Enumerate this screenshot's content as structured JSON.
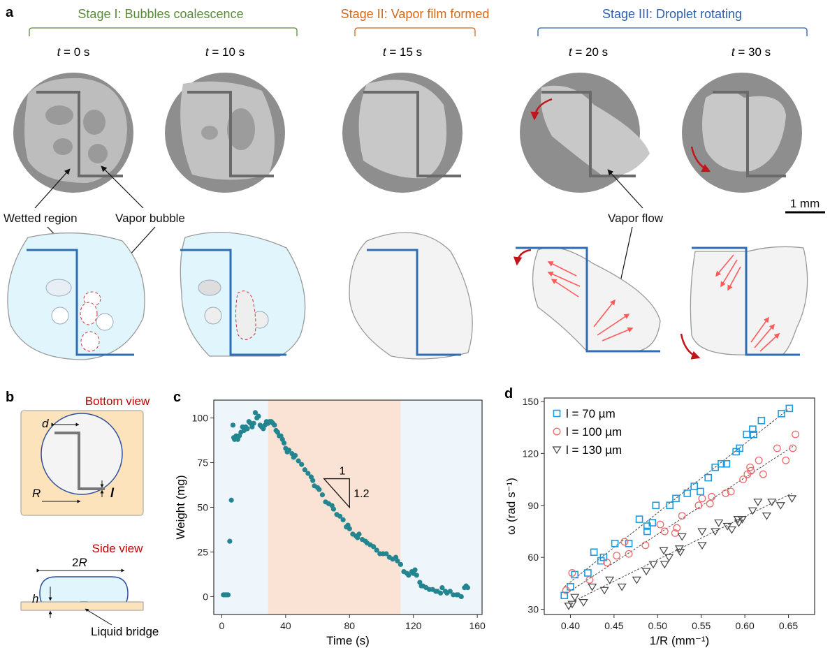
{
  "panel_labels": {
    "a": "a",
    "b": "b",
    "c": "c",
    "d": "d"
  },
  "panel_a": {
    "stages": [
      {
        "label": "Stage I: Bubbles coalescence",
        "color": "#5b8a3c"
      },
      {
        "label": "Stage II: Vapor film formed",
        "color": "#d2691e"
      },
      {
        "label": "Stage III: Droplet rotating",
        "color": "#2e5fa8"
      }
    ],
    "times": [
      {
        "var": "t",
        "rest": " = 0 s"
      },
      {
        "var": "t",
        "rest": " = 10 s"
      },
      {
        "var": "t",
        "rest": " = 15 s"
      },
      {
        "var": "t",
        "rest": " = 20 s"
      },
      {
        "var": "t",
        "rest": " = 30 s"
      }
    ],
    "annotations": {
      "wetted": "Wetted region",
      "bubble": "Vapor bubble",
      "flow": "Vapor flow",
      "scale": "1 mm"
    },
    "colors": {
      "liquid": "#e0f6fc",
      "electrode": "#2e6db4",
      "arrow": "#c0161b",
      "flow": "#ff5a5a"
    }
  },
  "panel_b": {
    "bottom_view": "Bottom view",
    "side_view": "Side view",
    "d": "d",
    "R": "R",
    "l": "l",
    "twoR": "2",
    "twoR_var": "R",
    "h": "h",
    "bridge": "Liquid bridge",
    "colors": {
      "title": "#c00000",
      "substrate": "#fde3bb"
    }
  },
  "chart_data": [
    {
      "type": "scatter",
      "xlabel": "Time (s)",
      "ylabel": "Weight (mg)",
      "xlim": [
        -5,
        163
      ],
      "ylim": [
        -10,
        110
      ],
      "xticks": [
        0,
        40,
        80,
        120,
        160
      ],
      "yticks": [
        0,
        25,
        50,
        75,
        100
      ],
      "color": "#23858f",
      "shaded_regions": [
        {
          "from": -5,
          "to": 29,
          "color": "#eef5fb"
        },
        {
          "from": 29,
          "to": 112,
          "color": "#fae3d4"
        },
        {
          "from": 112,
          "to": 163,
          "color": "#eef5fb"
        }
      ],
      "slope_triangle": {
        "run": "1",
        "rise": "1.2"
      },
      "points": [
        [
          1,
          1
        ],
        [
          2,
          1
        ],
        [
          3,
          1
        ],
        [
          4,
          1
        ],
        [
          5,
          31
        ],
        [
          6,
          54
        ],
        [
          7,
          96
        ],
        [
          7.5,
          89
        ],
        [
          8,
          88
        ],
        [
          9,
          90
        ],
        [
          10,
          88
        ],
        [
          11,
          90
        ],
        [
          12,
          92
        ],
        [
          13,
          95
        ],
        [
          14,
          93
        ],
        [
          15,
          95
        ],
        [
          16,
          94
        ],
        [
          17,
          98
        ],
        [
          18,
          97
        ],
        [
          19,
          95
        ],
        [
          20,
          97
        ],
        [
          21,
          103
        ],
        [
          22,
          100
        ],
        [
          23,
          101
        ],
        [
          24,
          96
        ],
        [
          25,
          95
        ],
        [
          26,
          94
        ],
        [
          27,
          96
        ],
        [
          28,
          98
        ],
        [
          29,
          97
        ],
        [
          30,
          98
        ],
        [
          31,
          98
        ],
        [
          32,
          97
        ],
        [
          33,
          96
        ],
        [
          34,
          93
        ],
        [
          35,
          92
        ],
        [
          36,
          90
        ],
        [
          37,
          90
        ],
        [
          38,
          88
        ],
        [
          39,
          86
        ],
        [
          40,
          83
        ],
        [
          41,
          81
        ],
        [
          42,
          82
        ],
        [
          44,
          80
        ],
        [
          45,
          78
        ],
        [
          46,
          79
        ],
        [
          48,
          76
        ],
        [
          50,
          74
        ],
        [
          52,
          71
        ],
        [
          54,
          69
        ],
        [
          56,
          67
        ],
        [
          57,
          65
        ],
        [
          58,
          62
        ],
        [
          60,
          61
        ],
        [
          61,
          60
        ],
        [
          63,
          57
        ],
        [
          65,
          53
        ],
        [
          67,
          52
        ],
        [
          69,
          51
        ],
        [
          70,
          49
        ],
        [
          72,
          46
        ],
        [
          74,
          45
        ],
        [
          76,
          43
        ],
        [
          78,
          39
        ],
        [
          79,
          40
        ],
        [
          80,
          38
        ],
        [
          82,
          35
        ],
        [
          84,
          34
        ],
        [
          85,
          33
        ],
        [
          86,
          35
        ],
        [
          88,
          32
        ],
        [
          90,
          31
        ],
        [
          91,
          30
        ],
        [
          93,
          29
        ],
        [
          95,
          28
        ],
        [
          97,
          26
        ],
        [
          99,
          24
        ],
        [
          101,
          24
        ],
        [
          103,
          24
        ],
        [
          105,
          22
        ],
        [
          107,
          21
        ],
        [
          109,
          22
        ],
        [
          110,
          20
        ],
        [
          112,
          18
        ],
        [
          114,
          14
        ],
        [
          116,
          13
        ],
        [
          117,
          12
        ],
        [
          119,
          14
        ],
        [
          120,
          13
        ],
        [
          121,
          15
        ],
        [
          122,
          12
        ],
        [
          124,
          8
        ],
        [
          125,
          6
        ],
        [
          126,
          6
        ],
        [
          128,
          5
        ],
        [
          130,
          4
        ],
        [
          132,
          4
        ],
        [
          134,
          3
        ],
        [
          135,
          3
        ],
        [
          137,
          2
        ],
        [
          138,
          5
        ],
        [
          140,
          3
        ],
        [
          141,
          2
        ],
        [
          143,
          3
        ],
        [
          145,
          1
        ],
        [
          147,
          1
        ],
        [
          148,
          1
        ],
        [
          150,
          0
        ],
        [
          152,
          5
        ],
        [
          153,
          6
        ],
        [
          154,
          5
        ]
      ]
    },
    {
      "type": "scatter",
      "xlabel": "1/R (mm⁻¹)",
      "ylabel": "ω (rad s⁻¹)",
      "xlim": [
        0.37,
        0.68
      ],
      "ylim": [
        27,
        152
      ],
      "xticks": [
        0.4,
        0.45,
        0.5,
        0.55,
        0.6,
        0.65
      ],
      "yticks": [
        30,
        60,
        90,
        120,
        150
      ],
      "legend": "top-left",
      "series": [
        {
          "name": "l = 70 µm",
          "marker": "square",
          "color": "#1a9be0",
          "fit": [
            [
              0.393,
              43
            ],
            [
              0.651,
              146
            ]
          ],
          "points": [
            [
              0.393,
              38
            ],
            [
              0.4,
              43
            ],
            [
              0.405,
              50
            ],
            [
              0.42,
              51
            ],
            [
              0.427,
              63
            ],
            [
              0.435,
              58
            ],
            [
              0.438,
              60
            ],
            [
              0.451,
              68
            ],
            [
              0.467,
              68
            ],
            [
              0.479,
              82
            ],
            [
              0.488,
              78
            ],
            [
              0.488,
              75
            ],
            [
              0.494,
              80
            ],
            [
              0.498,
              90
            ],
            [
              0.514,
              90
            ],
            [
              0.521,
              94
            ],
            [
              0.534,
              97
            ],
            [
              0.542,
              101
            ],
            [
              0.549,
              98
            ],
            [
              0.558,
              106
            ],
            [
              0.566,
              112
            ],
            [
              0.573,
              114
            ],
            [
              0.579,
              114
            ],
            [
              0.59,
              121
            ],
            [
              0.594,
              123
            ],
            [
              0.602,
              131
            ],
            [
              0.609,
              134
            ],
            [
              0.61,
              131
            ],
            [
              0.619,
              139
            ],
            [
              0.642,
              143
            ],
            [
              0.651,
              146
            ]
          ]
        },
        {
          "name": "l = 100 µm",
          "marker": "circle",
          "color": "#f0686a",
          "fit": [
            [
              0.395,
              39
            ],
            [
              0.655,
              124
            ]
          ],
          "points": [
            [
              0.395,
              41
            ],
            [
              0.402,
              51
            ],
            [
              0.422,
              47
            ],
            [
              0.442,
              57
            ],
            [
              0.453,
              61
            ],
            [
              0.462,
              69
            ],
            [
              0.467,
              62
            ],
            [
              0.486,
              67
            ],
            [
              0.503,
              79
            ],
            [
              0.508,
              75
            ],
            [
              0.52,
              74
            ],
            [
              0.522,
              77
            ],
            [
              0.528,
              84
            ],
            [
              0.547,
              90
            ],
            [
              0.551,
              94
            ],
            [
              0.56,
              91
            ],
            [
              0.562,
              95
            ],
            [
              0.578,
              97
            ],
            [
              0.584,
              98
            ],
            [
              0.598,
              105
            ],
            [
              0.603,
              108
            ],
            [
              0.606,
              112
            ],
            [
              0.607,
              110
            ],
            [
              0.616,
              116
            ],
            [
              0.621,
              108
            ],
            [
              0.637,
              123
            ],
            [
              0.647,
              116
            ],
            [
              0.655,
              123
            ],
            [
              0.658,
              131
            ]
          ]
        },
        {
          "name": "l = 130 µm",
          "marker": "triangle-down",
          "color": "#444444",
          "fit": [
            [
              0.405,
              35
            ],
            [
              0.654,
              97
            ]
          ],
          "points": [
            [
              0.398,
              32
            ],
            [
              0.402,
              33
            ],
            [
              0.405,
              37
            ],
            [
              0.415,
              34
            ],
            [
              0.425,
              43
            ],
            [
              0.439,
              41
            ],
            [
              0.445,
              47
            ],
            [
              0.459,
              43
            ],
            [
              0.476,
              47
            ],
            [
              0.487,
              52
            ],
            [
              0.495,
              56
            ],
            [
              0.507,
              64
            ],
            [
              0.508,
              56
            ],
            [
              0.513,
              60
            ],
            [
              0.525,
              65
            ],
            [
              0.526,
              63
            ],
            [
              0.528,
              72
            ],
            [
              0.551,
              75
            ],
            [
              0.551,
              67
            ],
            [
              0.566,
              75
            ],
            [
              0.57,
              80
            ],
            [
              0.58,
              78
            ],
            [
              0.585,
              76
            ],
            [
              0.592,
              82
            ],
            [
              0.593,
              80
            ],
            [
              0.597,
              82
            ],
            [
              0.609,
              87
            ],
            [
              0.615,
              92
            ],
            [
              0.625,
              84
            ],
            [
              0.631,
              92
            ],
            [
              0.641,
              90
            ],
            [
              0.654,
              94
            ]
          ]
        }
      ]
    }
  ]
}
